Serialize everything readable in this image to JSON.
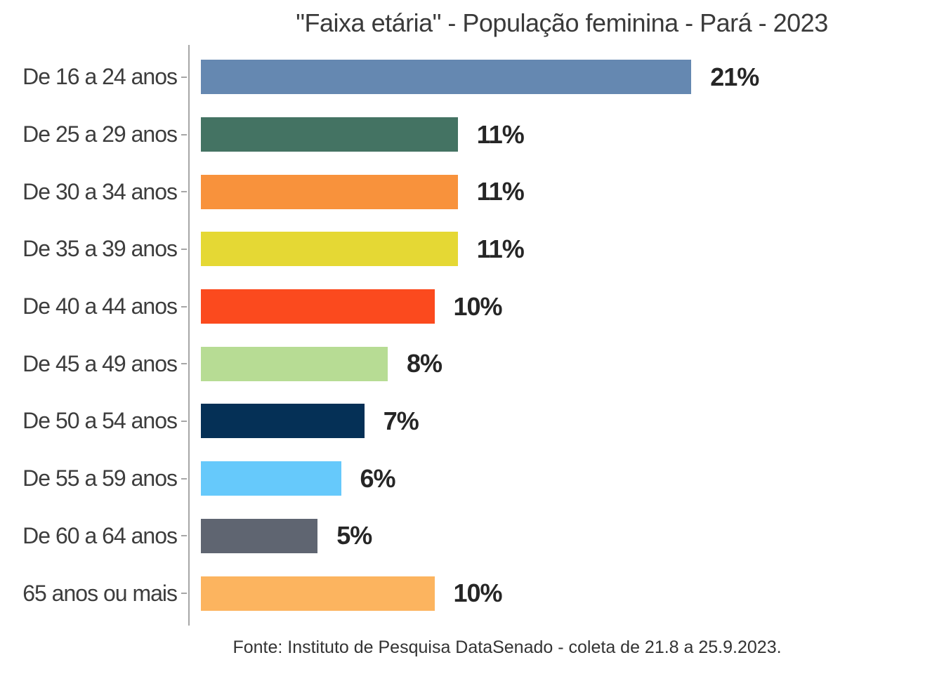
{
  "chart_data": {
    "type": "bar",
    "orientation": "horizontal",
    "title": "\"Faixa etária\" - População feminina - Pará - 2023",
    "categories": [
      "De 16 a 24 anos",
      "De 25 a 29 anos",
      "De 30 a 34 anos",
      "De 35 a 39 anos",
      "De 40 a 44 anos",
      "De 45 a 49 anos",
      "De 50 a 54 anos",
      "De 55 a 59 anos",
      "De 60 a 64 anos",
      "65 anos ou mais"
    ],
    "values": [
      21,
      11,
      11,
      11,
      10,
      8,
      7,
      6,
      5,
      10
    ],
    "value_labels": [
      "21%",
      "11%",
      "11%",
      "11%",
      "10%",
      "8%",
      "7%",
      "6%",
      "5%",
      "10%"
    ],
    "bar_colors": [
      "#6588b1",
      "#447363",
      "#f8923c",
      "#e5d834",
      "#fb4a1e",
      "#b7dc94",
      "#053056",
      "#66c9fb",
      "#5f6571",
      "#fcb45f"
    ],
    "xlabel": "",
    "ylabel": "",
    "xlim": [
      0,
      25
    ],
    "grid": false,
    "legend": "none",
    "axis_color": "#a6a6a6",
    "label_color": "#3d3d3d",
    "value_label_color": "#262626"
  },
  "footer": {
    "text": "Fonte: Instituto de Pesquisa DataSenado - coleta de 21.8 a 25.9.2023."
  }
}
